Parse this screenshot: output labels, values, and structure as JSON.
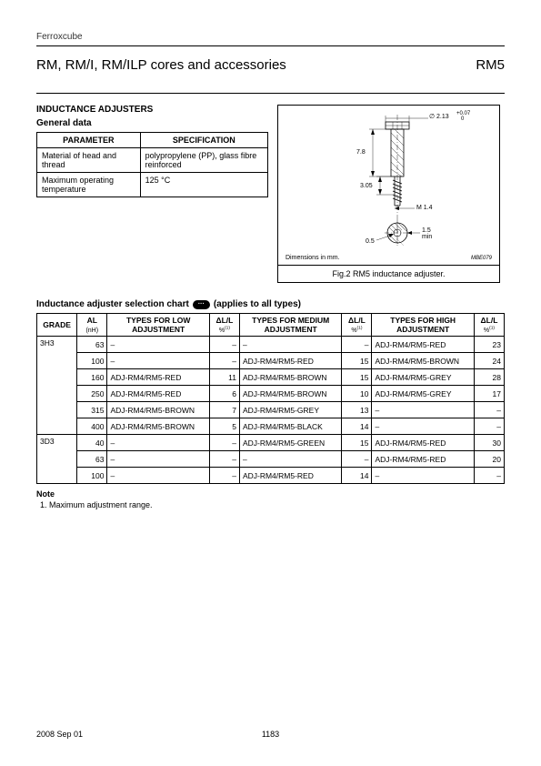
{
  "company": "Ferroxcube",
  "title": "RM, RM/I, RM/ILP cores and accessories",
  "title_right": "RM5",
  "section_head": "INDUCTANCE ADJUSTERS",
  "general_data_head": "General data",
  "general_table": {
    "col1": "PARAMETER",
    "col2": "SPECIFICATION",
    "rows": [
      {
        "p": "Material of head and thread",
        "s": "polypropylene (PP), glass fibre reinforced"
      },
      {
        "p": "Maximum operating temperature",
        "s": "125 °C"
      }
    ]
  },
  "fig": {
    "dim_note": "Dimensions in mm.",
    "mbe": "MBE079",
    "caption": "Fig.2  RM5 inductance adjuster.",
    "d_top": "∅ 2.13",
    "d_tol": "+0.07\n   0",
    "h1": "7.8",
    "h2": "3.05",
    "m": "M 1.4",
    "r1": "0.5",
    "r2": "1.5\nmin"
  },
  "sel_head_a": "Inductance adjuster selection chart",
  "sel_head_badge": "···",
  "sel_head_b": "(applies to all types)",
  "sel": {
    "headers": {
      "grade": "GRADE",
      "al": "AL",
      "al_unit": "(nH)",
      "low": "TYPES FOR LOW ADJUSTMENT",
      "med": "TYPES FOR MEDIUM ADJUSTMENT",
      "high": "TYPES FOR HIGH ADJUSTMENT",
      "dll": "ΔL/L",
      "pct": "%"
    },
    "rows": [
      {
        "grade": "3H3",
        "al": "63",
        "low": "–",
        "d1": "–",
        "med": "–",
        "d2": "–",
        "high": "ADJ-RM4/RM5-RED",
        "d3": "23"
      },
      {
        "grade": "",
        "al": "100",
        "low": "–",
        "d1": "–",
        "med": "ADJ-RM4/RM5-RED",
        "d2": "15",
        "high": "ADJ-RM4/RM5-BROWN",
        "d3": "24"
      },
      {
        "grade": "",
        "al": "160",
        "low": "ADJ-RM4/RM5-RED",
        "d1": "11",
        "med": "ADJ-RM4/RM5-BROWN",
        "d2": "15",
        "high": "ADJ-RM4/RM5-GREY",
        "d3": "28"
      },
      {
        "grade": "",
        "al": "250",
        "low": "ADJ-RM4/RM5-RED",
        "d1": "6",
        "med": "ADJ-RM4/RM5-BROWN",
        "d2": "10",
        "high": "ADJ-RM4/RM5-GREY",
        "d3": "17"
      },
      {
        "grade": "",
        "al": "315",
        "low": "ADJ-RM4/RM5-BROWN",
        "d1": "7",
        "med": "ADJ-RM4/RM5-GREY",
        "d2": "13",
        "high": "–",
        "d3": "–"
      },
      {
        "grade": "",
        "al": "400",
        "low": "ADJ-RM4/RM5-BROWN",
        "d1": "5",
        "med": "ADJ-RM4/RM5-BLACK",
        "d2": "14",
        "high": "–",
        "d3": "–"
      },
      {
        "grade": "3D3",
        "al": "40",
        "low": "–",
        "d1": "–",
        "med": "ADJ-RM4/RM5-GREEN",
        "d2": "15",
        "high": "ADJ-RM4/RM5-RED",
        "d3": "30"
      },
      {
        "grade": "",
        "al": "63",
        "low": "–",
        "d1": "–",
        "med": "–",
        "d2": "–",
        "high": "ADJ-RM4/RM5-RED",
        "d3": "20"
      },
      {
        "grade": "",
        "al": "100",
        "low": "–",
        "d1": "–",
        "med": "ADJ-RM4/RM5-RED",
        "d2": "14",
        "high": "–",
        "d3": "–"
      }
    ]
  },
  "note_head": "Note",
  "note_body": "1.   Maximum adjustment range.",
  "footer_date": "2008 Sep 01",
  "footer_page": "1183"
}
